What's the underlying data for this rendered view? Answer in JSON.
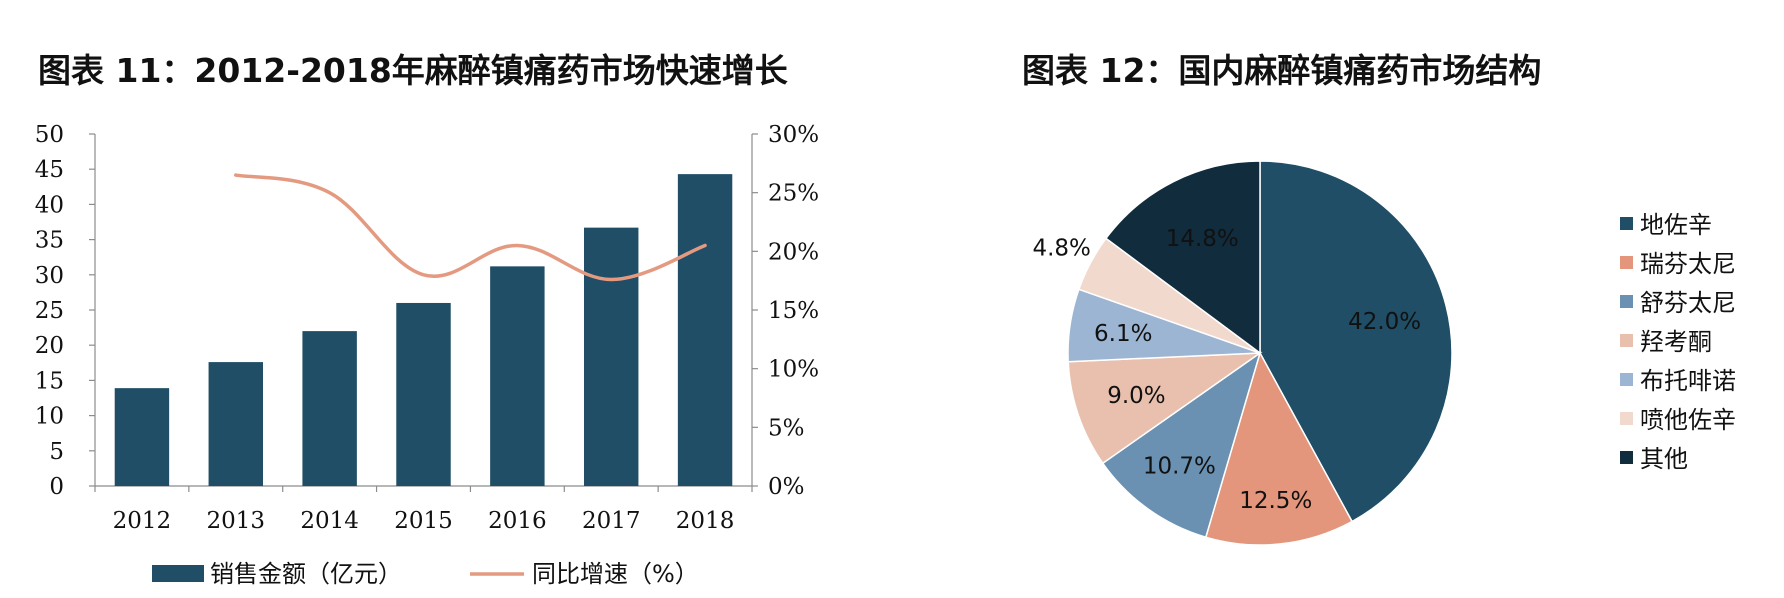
{
  "titles": {
    "left": "图表 11：2012-2018年麻醉镇痛药市场快速增长",
    "right": "图表 12：国内麻醉镇痛药市场结构"
  },
  "chart_data": [
    {
      "type": "bar",
      "categories": [
        "2012",
        "2013",
        "2014",
        "2015",
        "2016",
        "2017",
        "2018"
      ],
      "series": [
        {
          "name": "销售金额（亿元）",
          "type": "bar",
          "axis": "left",
          "values": [
            13.9,
            17.6,
            22.0,
            26.0,
            31.2,
            36.7,
            44.3
          ],
          "color": "#1f4e66"
        },
        {
          "name": "同比增速（%）",
          "type": "line",
          "axis": "right",
          "values": [
            null,
            26.5,
            25.0,
            18.0,
            20.5,
            17.6,
            20.5
          ],
          "color": "#e39a80"
        }
      ],
      "ylim": [
        0,
        50
      ],
      "y_ticks": [
        "0",
        "5",
        "10",
        "15",
        "20",
        "25",
        "30",
        "35",
        "40",
        "45",
        "50"
      ],
      "y2lim": [
        0,
        30
      ],
      "y2_ticks": [
        "0%",
        "5%",
        "10%",
        "15%",
        "20%",
        "25%",
        "30%"
      ],
      "legend": "bottom",
      "grid": false
    },
    {
      "type": "pie",
      "labels": [
        "地佐辛",
        "瑞芬太尼",
        "舒芬太尼",
        "羟考酮",
        "布托啡诺",
        "喷他佐辛",
        "其他"
      ],
      "values": [
        42.0,
        12.5,
        10.7,
        9.0,
        6.1,
        4.8,
        14.8
      ],
      "value_labels": [
        "42.0%",
        "12.5%",
        "10.7%",
        "9.0%",
        "6.1%",
        "4.8%",
        "14.8%"
      ],
      "colors": [
        "#1f4e66",
        "#e3967b",
        "#6a91b2",
        "#e9c0ae",
        "#9cb5d3",
        "#f2d9cd",
        "#112c3c"
      ],
      "legend": "right"
    }
  ]
}
